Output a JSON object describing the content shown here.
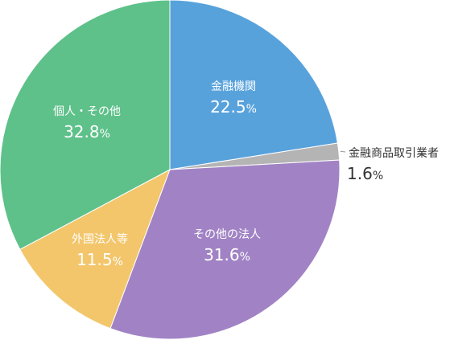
{
  "chart_data": {
    "type": "pie",
    "title": "",
    "start_angle_deg": 0,
    "direction": "clockwise",
    "unit": "%",
    "slices": [
      {
        "label": "金融機関",
        "value": 22.5,
        "value_text": "22.5",
        "color": "#58a2dc"
      },
      {
        "label": "金融商品取引業者",
        "value": 1.6,
        "value_text": "1.6",
        "color": "#b4b4b4"
      },
      {
        "label": "その他の法人",
        "value": 31.6,
        "value_text": "31.6",
        "color": "#a183c5"
      },
      {
        "label": "外国法人等",
        "value": 11.5,
        "value_text": "11.5",
        "color": "#f3c66c"
      },
      {
        "label": "個人・その他",
        "value": 32.8,
        "value_text": "32.8",
        "color": "#5ec18a"
      }
    ]
  }
}
